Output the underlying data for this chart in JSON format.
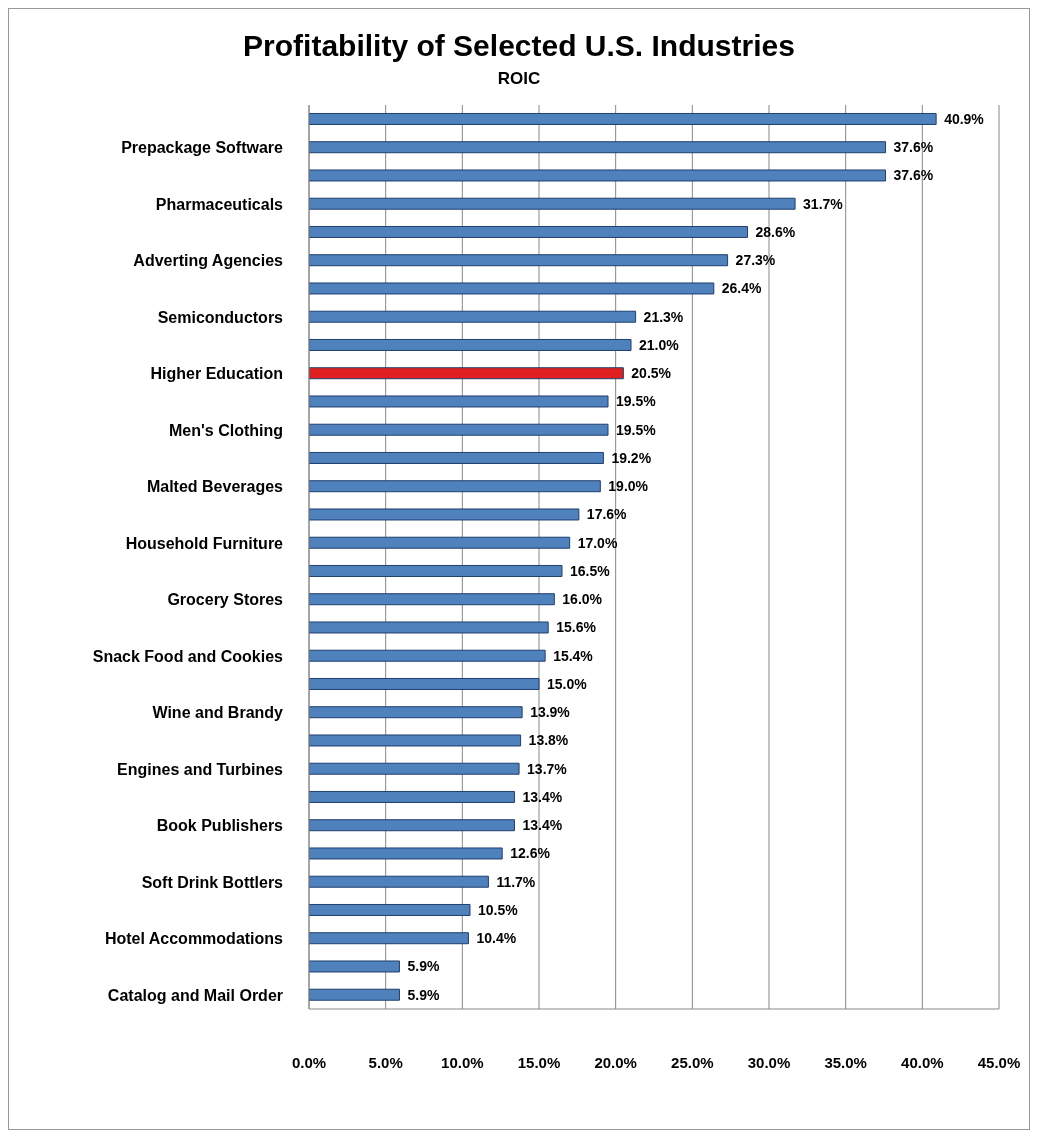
{
  "chart_data": {
    "type": "bar",
    "orientation": "horizontal",
    "title": "Profitability of Selected U.S. Industries",
    "subtitle": "ROIC",
    "categories": [
      null,
      "Prepackage Software",
      null,
      "Pharmaceuticals",
      null,
      "Adverting Agencies",
      null,
      "Semiconductors",
      null,
      "Higher Education",
      null,
      "Men's Clothing",
      null,
      "Malted Beverages",
      null,
      "Household Furniture",
      null,
      "Grocery Stores",
      null,
      "Snack Food and Cookies",
      null,
      "Wine and Brandy",
      null,
      "Engines and Turbines",
      null,
      "Book Publishers",
      null,
      "Soft Drink Bottlers",
      null,
      "Hotel Accommodations",
      null,
      "Catalog and Mail Order"
    ],
    "values": [
      40.9,
      37.6,
      37.6,
      31.7,
      28.6,
      27.3,
      26.4,
      21.3,
      21.0,
      20.5,
      19.5,
      19.5,
      19.2,
      19.0,
      17.6,
      17.0,
      16.5,
      16.0,
      15.6,
      15.4,
      15.0,
      13.9,
      13.8,
      13.7,
      13.4,
      13.4,
      12.6,
      11.7,
      10.5,
      10.4,
      5.9,
      5.9
    ],
    "value_labels": [
      "40.9%",
      "37.6%",
      "37.6%",
      "31.7%",
      "28.6%",
      "27.3%",
      "26.4%",
      "21.3%",
      "21.0%",
      "20.5%",
      "19.5%",
      "19.5%",
      "19.2%",
      "19.0%",
      "17.6%",
      "17.0%",
      "16.5%",
      "16.0%",
      "15.6%",
      "15.4%",
      "15.0%",
      "13.9%",
      "13.8%",
      "13.7%",
      "13.4%",
      "13.4%",
      "12.6%",
      "11.7%",
      "10.5%",
      "10.4%",
      "5.9%",
      "5.9%"
    ],
    "colors": [
      "#4f81bd",
      "#4f81bd",
      "#4f81bd",
      "#4f81bd",
      "#4f81bd",
      "#4f81bd",
      "#4f81bd",
      "#4f81bd",
      "#4f81bd",
      "#e02020",
      "#4f81bd",
      "#4f81bd",
      "#4f81bd",
      "#4f81bd",
      "#4f81bd",
      "#4f81bd",
      "#4f81bd",
      "#4f81bd",
      "#4f81bd",
      "#4f81bd",
      "#4f81bd",
      "#4f81bd",
      "#4f81bd",
      "#4f81bd",
      "#4f81bd",
      "#4f81bd",
      "#4f81bd",
      "#4f81bd",
      "#4f81bd",
      "#4f81bd",
      "#4f81bd",
      "#4f81bd"
    ],
    "xlim": [
      0,
      45
    ],
    "xticks": [
      {
        "value": 0,
        "label": "0.0%"
      },
      {
        "value": 5,
        "label": "5.0%"
      },
      {
        "value": 10,
        "label": "10.0%"
      },
      {
        "value": 15,
        "label": "15.0%"
      },
      {
        "value": 20,
        "label": "20.0%"
      },
      {
        "value": 25,
        "label": "25.0%"
      },
      {
        "value": 30,
        "label": "30.0%"
      },
      {
        "value": 35,
        "label": "35.0%"
      },
      {
        "value": 40,
        "label": "40.0%"
      },
      {
        "value": 45,
        "label": "45.0%"
      }
    ],
    "grid": "x",
    "legend": false
  }
}
